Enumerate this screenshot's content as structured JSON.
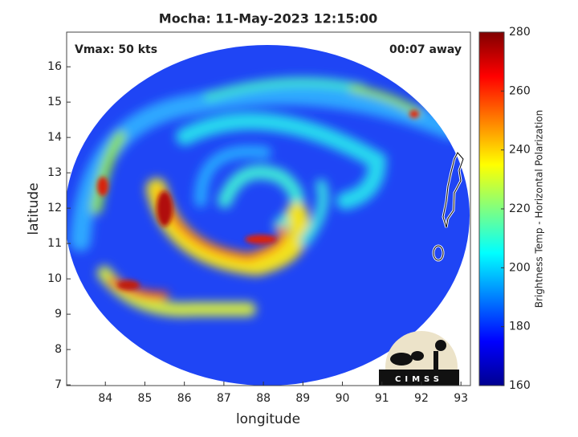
{
  "chart_data": {
    "type": "image",
    "title": "Mocha: 11-May-2023 12:15:00",
    "xlabel": "longitude",
    "ylabel": "latitude",
    "xlim": [
      83.02,
      93.24
    ],
    "xticks": [
      84,
      85,
      86,
      87,
      88,
      89,
      90,
      91,
      92,
      93
    ],
    "ylim": [
      6.98,
      16.98
    ],
    "yticks": [
      7,
      8,
      9,
      10,
      11,
      12,
      13,
      14,
      15,
      16
    ],
    "annotations": [
      "Vmax: 50 kts",
      "00:07 away"
    ],
    "logo": "CIMSS",
    "colorbar": {
      "label": "Brightness Temp - Horizontal Polarization",
      "colormap": "jet",
      "lim": [
        160,
        280
      ],
      "ticks": [
        160,
        180,
        200,
        220,
        240,
        260,
        280
      ]
    }
  }
}
